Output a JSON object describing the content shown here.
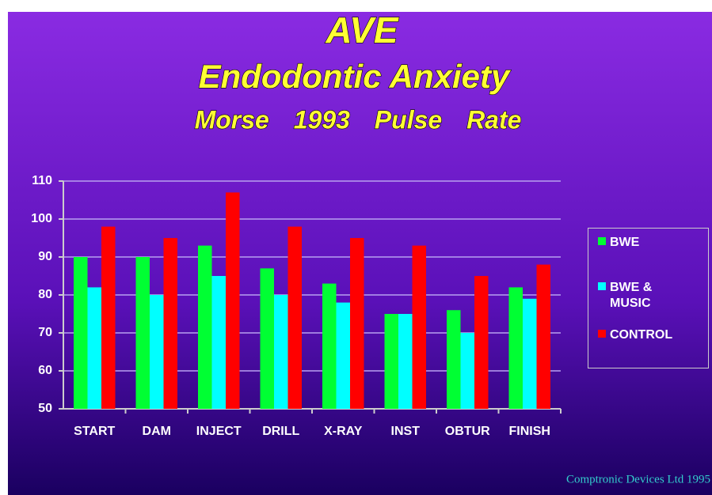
{
  "chart_data": {
    "type": "bar",
    "title": "AVE",
    "subtitle": "Endodontic Anxiety",
    "subtitle2": "Morse 1993 Pulse Rate",
    "footer": "Comptronic Devices Ltd 1995",
    "categories": [
      "START",
      "DAM",
      "INJECT",
      "DRILL",
      "X-RAY",
      "INST",
      "OBTUR",
      "FINISH"
    ],
    "series": [
      {
        "name": "BWE",
        "color": "#00ff33",
        "values": [
          90,
          90,
          93,
          87,
          83,
          75,
          76,
          82
        ]
      },
      {
        "name": "BWE & MUSIC",
        "color": "#00ffff",
        "values": [
          82,
          80,
          85,
          80,
          78,
          75,
          70,
          79
        ]
      },
      {
        "name": "CONTROL",
        "color": "#ff0000",
        "values": [
          98,
          95,
          107,
          98,
          95,
          93,
          85,
          88
        ]
      }
    ],
    "ylim": [
      50,
      110
    ],
    "yticks": [
      50,
      60,
      70,
      80,
      90,
      100,
      110
    ],
    "grid": true,
    "legend": "right"
  }
}
